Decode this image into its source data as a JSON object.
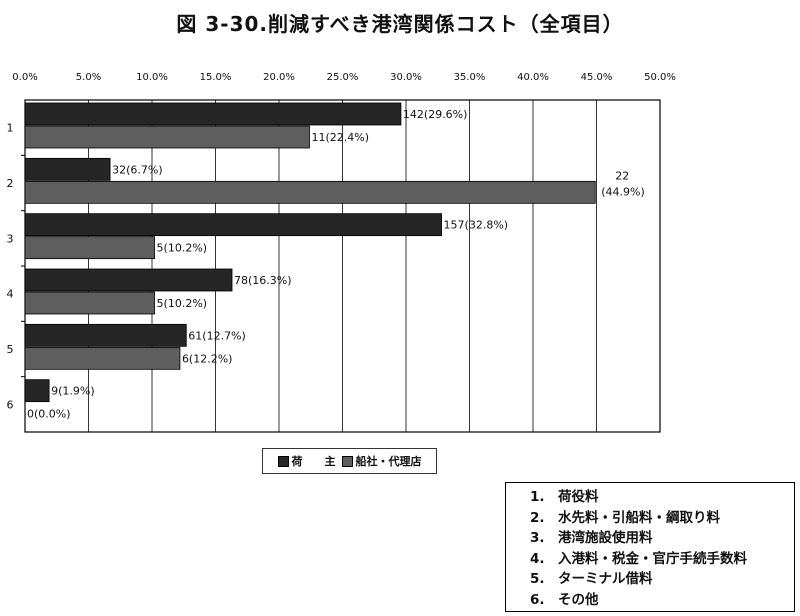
{
  "title": "図 3-30.削減すべき港湾関係コスト（全項目）",
  "colors": {
    "shipper": "#262626",
    "agent": "#5e5e5e",
    "frame": "#000000",
    "grid": "#000000"
  },
  "legend": {
    "series1": "荷　　主",
    "series2": "船社・代理店"
  },
  "category_box": {
    "items": [
      "1.　荷役料",
      "2.　水先料・引船料・綱取り料",
      "3.　港湾施設使用料",
      "4.　入港料・税金・官庁手続手数料",
      "5.　ターミナル借料",
      "6.　その他"
    ]
  },
  "chart_data": {
    "type": "bar",
    "orientation": "horizontal",
    "title": "図 3-30.削減すべき港湾関係コスト（全項目）",
    "categories": [
      "1",
      "2",
      "3",
      "4",
      "5",
      "6"
    ],
    "xlim": [
      0,
      50
    ],
    "xticks": [
      "0.0%",
      "5.0%",
      "10.0%",
      "15.0%",
      "20.0%",
      "25.0%",
      "30.0%",
      "35.0%",
      "40.0%",
      "45.0%",
      "50.0%"
    ],
    "grid": true,
    "legend_position": "bottom",
    "series": [
      {
        "name": "荷　　主",
        "values": [
          29.6,
          6.7,
          32.8,
          16.3,
          12.7,
          1.9
        ],
        "labels": [
          "142(29.6%)",
          "32(6.7%)",
          "157(32.8%)",
          "78(16.3%)",
          "61(12.7%)",
          "9(1.9%)"
        ]
      },
      {
        "name": "船社・代理店",
        "values": [
          22.4,
          44.9,
          10.2,
          10.2,
          12.2,
          0.0
        ],
        "labels": [
          "11(22.4%)",
          "22\n(44.9%)",
          "5(10.2%)",
          "5(10.2%)",
          "6(12.2%)",
          "0(0.0%)"
        ]
      }
    ]
  }
}
